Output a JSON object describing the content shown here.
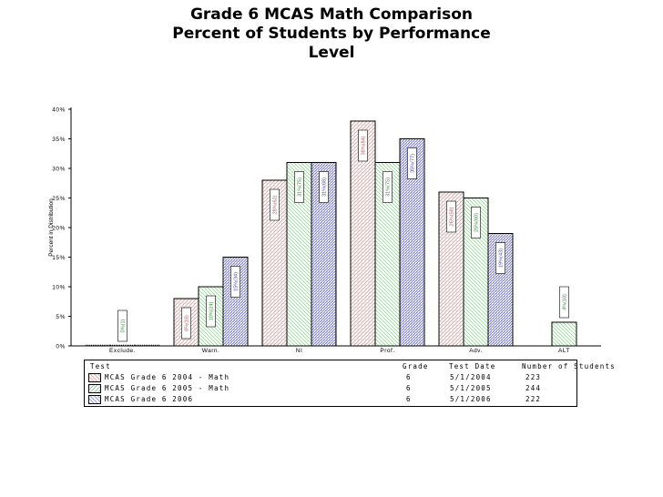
{
  "title_lines": [
    "Grade 6 MCAS Math Comparison",
    "Percent of Students by Performance",
    "Level"
  ],
  "chart_data": {
    "type": "bar",
    "title": "Grade 6 MCAS Math Comparison Percent of Students by Performance Level",
    "ylabel": "Percent in Distribution",
    "xlabel": "",
    "ylim": [
      0,
      40
    ],
    "yticks": [
      "0%",
      "5%",
      "10%",
      "15%",
      "20%",
      "25%",
      "30%",
      "35%",
      "40%"
    ],
    "categories": [
      "Exclude.",
      "Warn.",
      "NI",
      "Prof.",
      "Adv.",
      "ALT"
    ],
    "series": [
      {
        "name": "MCAS Grade 6 2004 - Math",
        "values": [
          0,
          8,
          28,
          38,
          26,
          null
        ],
        "labels": [
          "",
          "8%(18)",
          "28%(62)",
          "38%(84)",
          "26%(58)",
          ""
        ],
        "color": "#e8a9a9"
      },
      {
        "name": "MCAS Grade 6 2005 - Math",
        "values": [
          0,
          10,
          31,
          31,
          25,
          4
        ],
        "labels": [
          "0%(1)",
          "10%(24)",
          "31%(75)",
          "31%(75)",
          "25%(60)",
          "4%(10)"
        ],
        "color": "#9ccf9c"
      },
      {
        "name": "MCAS Grade 6 2006",
        "values": [
          0,
          15,
          31,
          35,
          19,
          null
        ],
        "labels": [
          "",
          "15%(34)",
          "31%(68)",
          "35%(77)",
          "19%(43)",
          ""
        ],
        "color": "#a0a0d6"
      }
    ],
    "grid": false,
    "legend": "bottom"
  },
  "legend_table": {
    "headers": {
      "test": "Test",
      "grade": "Grade",
      "date": "Test Date",
      "count": "Number of Students"
    },
    "rows": [
      {
        "test": "MCAS Grade 6 2004 - Math",
        "grade": "6",
        "date": "5/1/2004",
        "count": "223"
      },
      {
        "test": "MCAS Grade 6 2005 - Math",
        "grade": "6",
        "date": "5/1/2005",
        "count": "244"
      },
      {
        "test": "MCAS Grade 6 2006",
        "grade": "6",
        "date": "5/1/2006",
        "count": "222"
      }
    ]
  }
}
